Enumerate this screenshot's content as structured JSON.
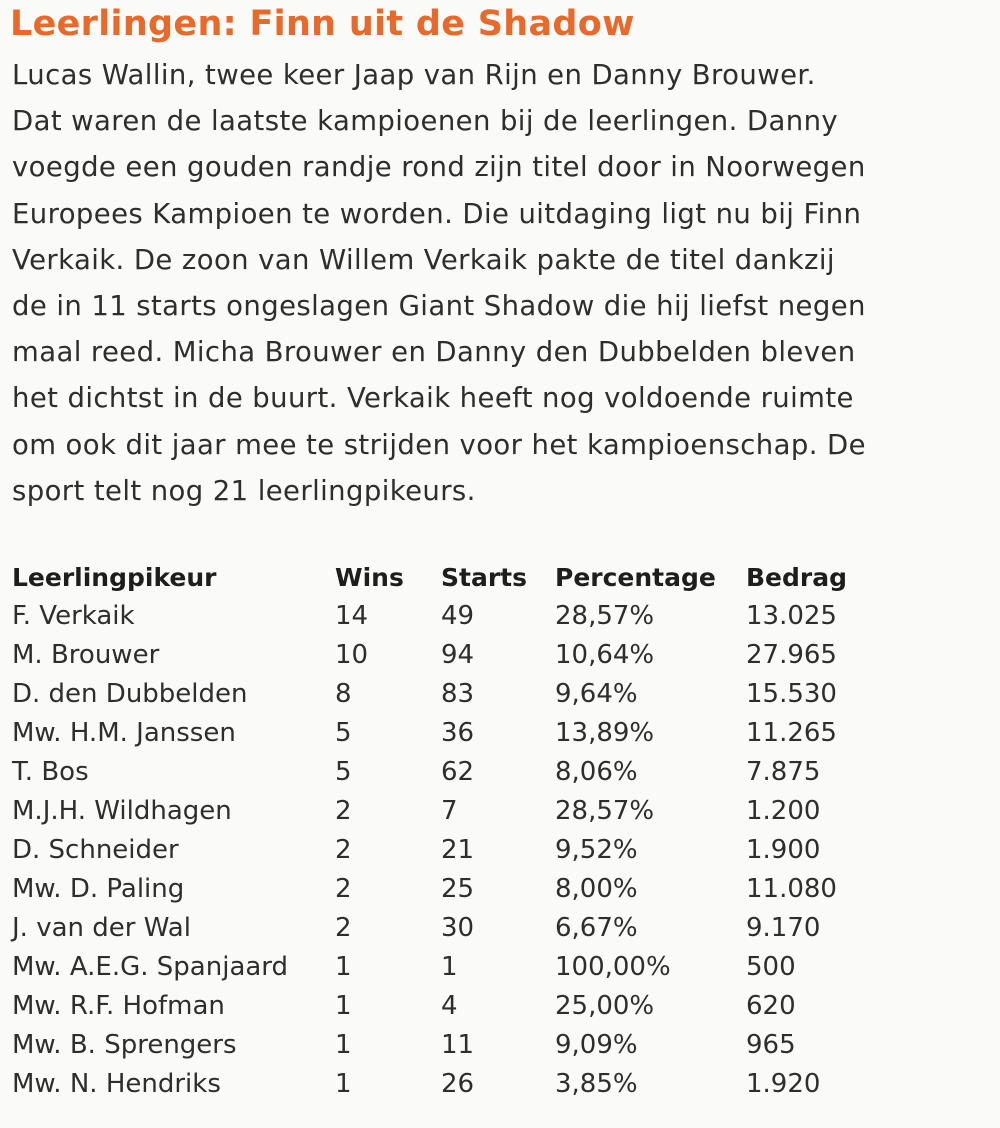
{
  "header": {
    "title": "Leerlingen: Finn uit de Shadow"
  },
  "paragraph": {
    "lines": [
      "Lucas Wallin, twee keer Jaap van Rijn en Danny Brouwer.",
      "Dat waren de laatste kampioenen bij de leerlingen. Danny",
      "voegde een gouden randje rond zijn titel door in Noorwegen",
      "Europees Kampioen te worden. Die uitdaging ligt nu bij Finn",
      "Verkaik. De zoon van Willem Verkaik pakte de titel dankzij",
      "de in 11 starts ongeslagen Giant Shadow die hij liefst negen",
      "maal reed. Micha Brouwer en Danny den Dubbelden bleven",
      "het dichtst in de buurt. Verkaik heeft nog voldoende ruimte",
      "om ook dit jaar mee te strijden voor het kampioenschap. De",
      "sport telt nog 21 leerlingpikeurs."
    ]
  },
  "table": {
    "columns": [
      "Leerlingpikeur",
      "Wins",
      "Starts",
      "Percentage",
      "Bedrag"
    ],
    "rows": [
      [
        "F. Verkaik",
        "14",
        "49",
        "28,57%",
        "13.025"
      ],
      [
        "M. Brouwer",
        "10",
        "94",
        "10,64%",
        "27.965"
      ],
      [
        "D. den Dubbelden",
        "8",
        "83",
        "9,64%",
        "15.530"
      ],
      [
        "Mw. H.M. Janssen",
        "5",
        "36",
        "13,89%",
        "11.265"
      ],
      [
        "T. Bos",
        "5",
        "62",
        "8,06%",
        "7.875"
      ],
      [
        "M.J.H. Wildhagen",
        "2",
        "7",
        "28,57%",
        "1.200"
      ],
      [
        "D. Schneider",
        "2",
        "21",
        "9,52%",
        "1.900"
      ],
      [
        "Mw. D. Paling",
        "2",
        "25",
        "8,00%",
        "11.080"
      ],
      [
        "J. van der Wal",
        "2",
        "30",
        "6,67%",
        "9.170"
      ],
      [
        "Mw. A.E.G. Spanjaard",
        "1",
        "1",
        "100,00%",
        "500"
      ],
      [
        "Mw. R.F. Hofman",
        "1",
        "4",
        "25,00%",
        "620"
      ],
      [
        "Mw. B. Sprengers",
        "1",
        "11",
        "9,09%",
        "965"
      ],
      [
        "Mw. N. Hendriks",
        "1",
        "26",
        "3,85%",
        "1.920"
      ]
    ]
  }
}
